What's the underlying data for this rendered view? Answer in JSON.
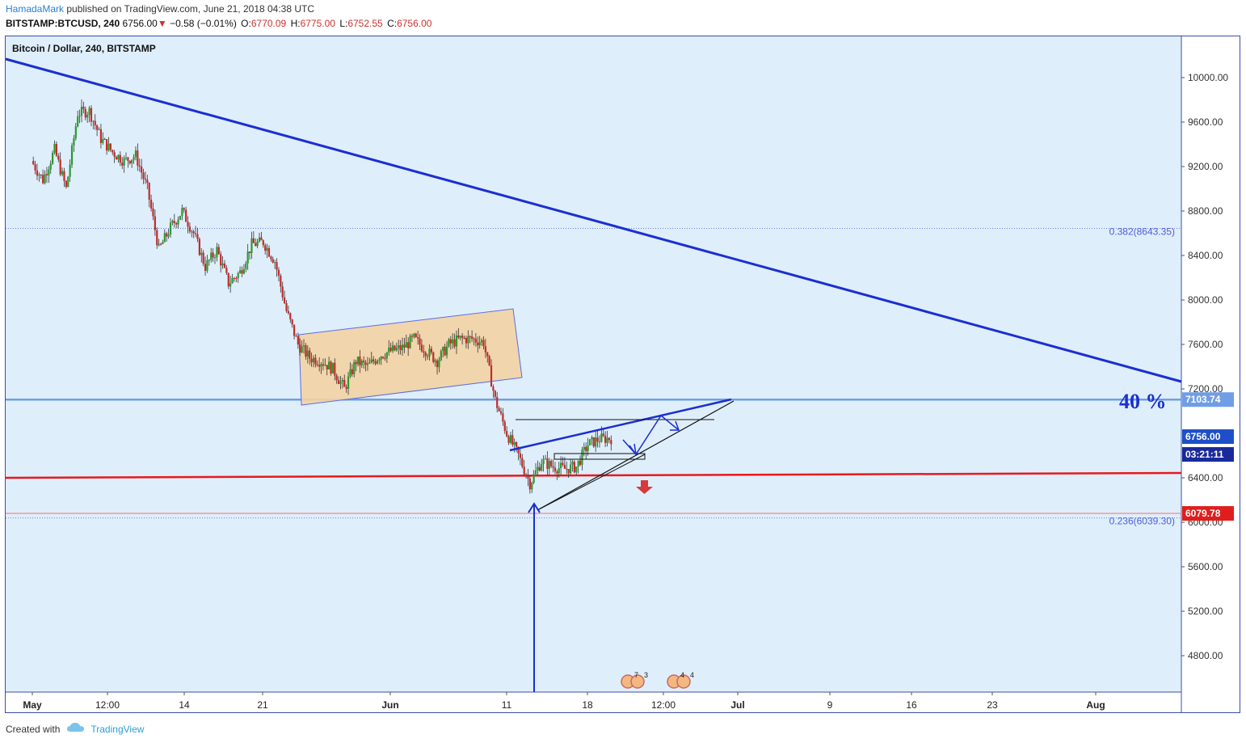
{
  "header": {
    "author": "HamadaMark",
    "published": "published on TradingView.com, June 21, 2018 04:38 UTC",
    "symbol": "BITSTAMP:BTCUSD, 240",
    "last": "6756.00",
    "change": "−0.58 (−0.01%)",
    "open_label": "O:",
    "open": "6770.09",
    "high_label": "H:",
    "high": "6775.00",
    "low_label": "L:",
    "low": "6752.55",
    "close_label": "C:",
    "close": "6756.00"
  },
  "legend_title": "Bitcoin / Dollar, 240, BITSTAMP",
  "footer": {
    "created_with": "Created with",
    "brand": "TradingView"
  },
  "colors": {
    "background": "#dfeefb",
    "trendline": "#1a2fd0",
    "support_line": "#e8191c",
    "horizontal_level": "#6f9ee6",
    "channel_fill": "#f3d2a4",
    "channel_border": "#5a6ee0",
    "candle_up": "#2a9a2a",
    "candle_down": "#c52a2a",
    "price_tag": "#1f4fc8",
    "support_tag": "#e01e1e"
  },
  "chart_data": {
    "type": "candlestick",
    "title": "Bitcoin / Dollar, 240, BITSTAMP",
    "y_axis": {
      "ticks": [
        "10000.00",
        "9600.00",
        "9200.00",
        "8800.00",
        "8400.00",
        "8000.00",
        "7600.00",
        "7200.00",
        "6400.00",
        "6000.00",
        "5600.00",
        "5200.00",
        "4800.00"
      ],
      "range": [
        4480,
        10380
      ]
    },
    "x_axis": {
      "ticks": [
        "May",
        "12:00",
        "14",
        "21",
        "Jun",
        "11",
        "18",
        "12:00",
        "Jul",
        "9",
        "16",
        "23",
        "Aug"
      ]
    },
    "price_path": [
      [
        "2018-05-01",
        9250
      ],
      [
        "2018-05-02",
        9080
      ],
      [
        "2018-05-03",
        9350
      ],
      [
        "2018-05-04",
        9000
      ],
      [
        "2018-05-05",
        9680
      ],
      [
        "2018-05-06",
        9700
      ],
      [
        "2018-05-07",
        9450
      ],
      [
        "2018-05-08",
        9330
      ],
      [
        "2018-05-09",
        9250
      ],
      [
        "2018-05-10",
        9300
      ],
      [
        "2018-05-11",
        9000
      ],
      [
        "2018-05-12",
        8450
      ],
      [
        "2018-05-13",
        8650
      ],
      [
        "2018-05-14",
        8800
      ],
      [
        "2018-05-15",
        8600
      ],
      [
        "2018-05-16",
        8300
      ],
      [
        "2018-05-17",
        8450
      ],
      [
        "2018-05-18",
        8150
      ],
      [
        "2018-05-19",
        8250
      ],
      [
        "2018-05-20",
        8500
      ],
      [
        "2018-05-21",
        8520
      ],
      [
        "2018-05-22",
        8350
      ],
      [
        "2018-05-23",
        7900
      ],
      [
        "2018-05-24",
        7600
      ],
      [
        "2018-05-25",
        7480
      ],
      [
        "2018-05-26",
        7450
      ],
      [
        "2018-05-27",
        7380
      ],
      [
        "2018-05-28",
        7200
      ],
      [
        "2018-05-29",
        7450
      ],
      [
        "2018-05-30",
        7400
      ],
      [
        "2018-05-31",
        7500
      ],
      [
        "2018-06-01",
        7540
      ],
      [
        "2018-06-02",
        7570
      ],
      [
        "2018-06-03",
        7650
      ],
      [
        "2018-06-04",
        7550
      ],
      [
        "2018-06-05",
        7450
      ],
      [
        "2018-06-06",
        7600
      ],
      [
        "2018-06-07",
        7650
      ],
      [
        "2018-06-08",
        7650
      ],
      [
        "2018-06-09",
        7620
      ],
      [
        "2018-06-10",
        7100
      ],
      [
        "2018-06-11",
        6800
      ],
      [
        "2018-06-12",
        6600
      ],
      [
        "2018-06-13",
        6350
      ],
      [
        "2018-06-14",
        6550
      ],
      [
        "2018-06-15",
        6500
      ],
      [
        "2018-06-16",
        6480
      ],
      [
        "2018-06-17",
        6500
      ],
      [
        "2018-06-18",
        6700
      ],
      [
        "2018-06-19",
        6750
      ],
      [
        "2018-06-20",
        6756
      ]
    ],
    "horizontal_levels": [
      {
        "price": 7103.74,
        "label": "7103.74",
        "annotation": "40 %"
      },
      {
        "price": 6079.78,
        "label": "6079.78"
      }
    ],
    "fibonacci": [
      {
        "ratio": "0.382",
        "price": "8643.35",
        "label": "0.382(8643.35)"
      },
      {
        "ratio": "0.236",
        "price": "6039.30",
        "label": "0.236(6039.30)"
      }
    ],
    "current_price": {
      "price": "6756.00",
      "countdown": "03:21:11"
    },
    "support_line_price": 6400,
    "annotations": [
      "40 %"
    ],
    "events": [
      {
        "count": "7",
        "sub": "3"
      },
      {
        "count": "4",
        "sub": "4"
      }
    ],
    "grid": false
  }
}
